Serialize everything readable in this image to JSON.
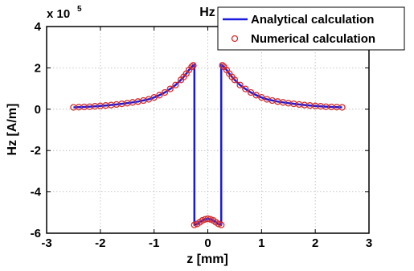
{
  "chart_data": {
    "type": "line",
    "title": "Hz",
    "xlabel": "z [mm]",
    "ylabel": "Hz [A/m]",
    "exponent_base": "x 10",
    "exponent_power": "5",
    "scale_factor": 100000,
    "xlim": [
      -3,
      3
    ],
    "ylim": [
      -6,
      4
    ],
    "xticks": [
      -3,
      -2,
      -1,
      0,
      1,
      2,
      3
    ],
    "yticks": [
      -6,
      -4,
      -2,
      0,
      2,
      4
    ],
    "xtick_labels": [
      "-3",
      "-2",
      "-1",
      "0",
      "1",
      "2",
      "3"
    ],
    "ytick_labels": [
      "-6",
      "-4",
      "-2",
      "0",
      "2",
      "4"
    ],
    "grid": true,
    "legend_position": "top-right",
    "colors": {
      "analytical": "#1a1adf",
      "numerical": "#d62b2b",
      "grid": "#b8b8b8"
    },
    "series": [
      {
        "name": "Analytical calculation",
        "style": "line",
        "x": [
          -2.5,
          -2.3,
          -2.1,
          -1.9,
          -1.7,
          -1.5,
          -1.3,
          -1.1,
          -1.0,
          -0.9,
          -0.8,
          -0.7,
          -0.6,
          -0.5,
          -0.45,
          -0.4,
          -0.35,
          -0.3,
          -0.27,
          -0.25,
          -0.25,
          -0.22,
          -0.18,
          -0.14,
          -0.1,
          -0.05,
          0,
          0.05,
          0.1,
          0.14,
          0.18,
          0.22,
          0.25,
          0.25,
          0.27,
          0.3,
          0.35,
          0.4,
          0.45,
          0.5,
          0.6,
          0.7,
          0.8,
          0.9,
          1.0,
          1.1,
          1.3,
          1.5,
          1.7,
          1.9,
          2.1,
          2.3,
          2.5
        ],
        "y": [
          0.09,
          0.11,
          0.14,
          0.18,
          0.23,
          0.29,
          0.37,
          0.48,
          0.57,
          0.68,
          0.81,
          0.98,
          1.17,
          1.42,
          1.56,
          1.72,
          1.9,
          2.05,
          2.12,
          2.15,
          -5.6,
          -5.58,
          -5.52,
          -5.45,
          -5.38,
          -5.33,
          -5.3,
          -5.33,
          -5.38,
          -5.45,
          -5.52,
          -5.58,
          -5.6,
          2.15,
          2.12,
          2.05,
          1.9,
          1.72,
          1.56,
          1.42,
          1.17,
          0.98,
          0.81,
          0.68,
          0.57,
          0.48,
          0.37,
          0.29,
          0.23,
          0.18,
          0.14,
          0.11,
          0.09
        ]
      },
      {
        "name": "Numerical calculation",
        "style": "markers",
        "x": [
          -2.5,
          -2.4,
          -2.3,
          -2.2,
          -2.1,
          -2.0,
          -1.9,
          -1.8,
          -1.7,
          -1.6,
          -1.5,
          -1.4,
          -1.3,
          -1.2,
          -1.1,
          -1.0,
          -0.9,
          -0.8,
          -0.7,
          -0.6,
          -0.5,
          -0.45,
          -0.4,
          -0.35,
          -0.3,
          -0.27,
          -0.25,
          -0.2,
          -0.15,
          -0.1,
          -0.05,
          0,
          0.05,
          0.1,
          0.15,
          0.2,
          0.25,
          0.27,
          0.3,
          0.35,
          0.4,
          0.45,
          0.5,
          0.6,
          0.7,
          0.8,
          0.9,
          1.0,
          1.1,
          1.2,
          1.3,
          1.4,
          1.5,
          1.6,
          1.7,
          1.8,
          1.9,
          2.0,
          2.1,
          2.2,
          2.3,
          2.4,
          2.5
        ],
        "y": [
          0.09,
          0.1,
          0.11,
          0.12,
          0.14,
          0.16,
          0.18,
          0.2,
          0.23,
          0.26,
          0.29,
          0.33,
          0.37,
          0.42,
          0.48,
          0.57,
          0.68,
          0.81,
          0.98,
          1.17,
          1.42,
          1.56,
          1.72,
          1.9,
          2.05,
          2.12,
          -5.6,
          -5.55,
          -5.47,
          -5.38,
          -5.33,
          -5.3,
          -5.33,
          -5.38,
          -5.47,
          -5.55,
          -5.6,
          2.12,
          2.05,
          1.9,
          1.72,
          1.56,
          1.42,
          1.17,
          0.98,
          0.81,
          0.68,
          0.57,
          0.48,
          0.42,
          0.37,
          0.33,
          0.29,
          0.26,
          0.23,
          0.2,
          0.18,
          0.16,
          0.14,
          0.12,
          0.11,
          0.1,
          0.09
        ]
      }
    ]
  }
}
